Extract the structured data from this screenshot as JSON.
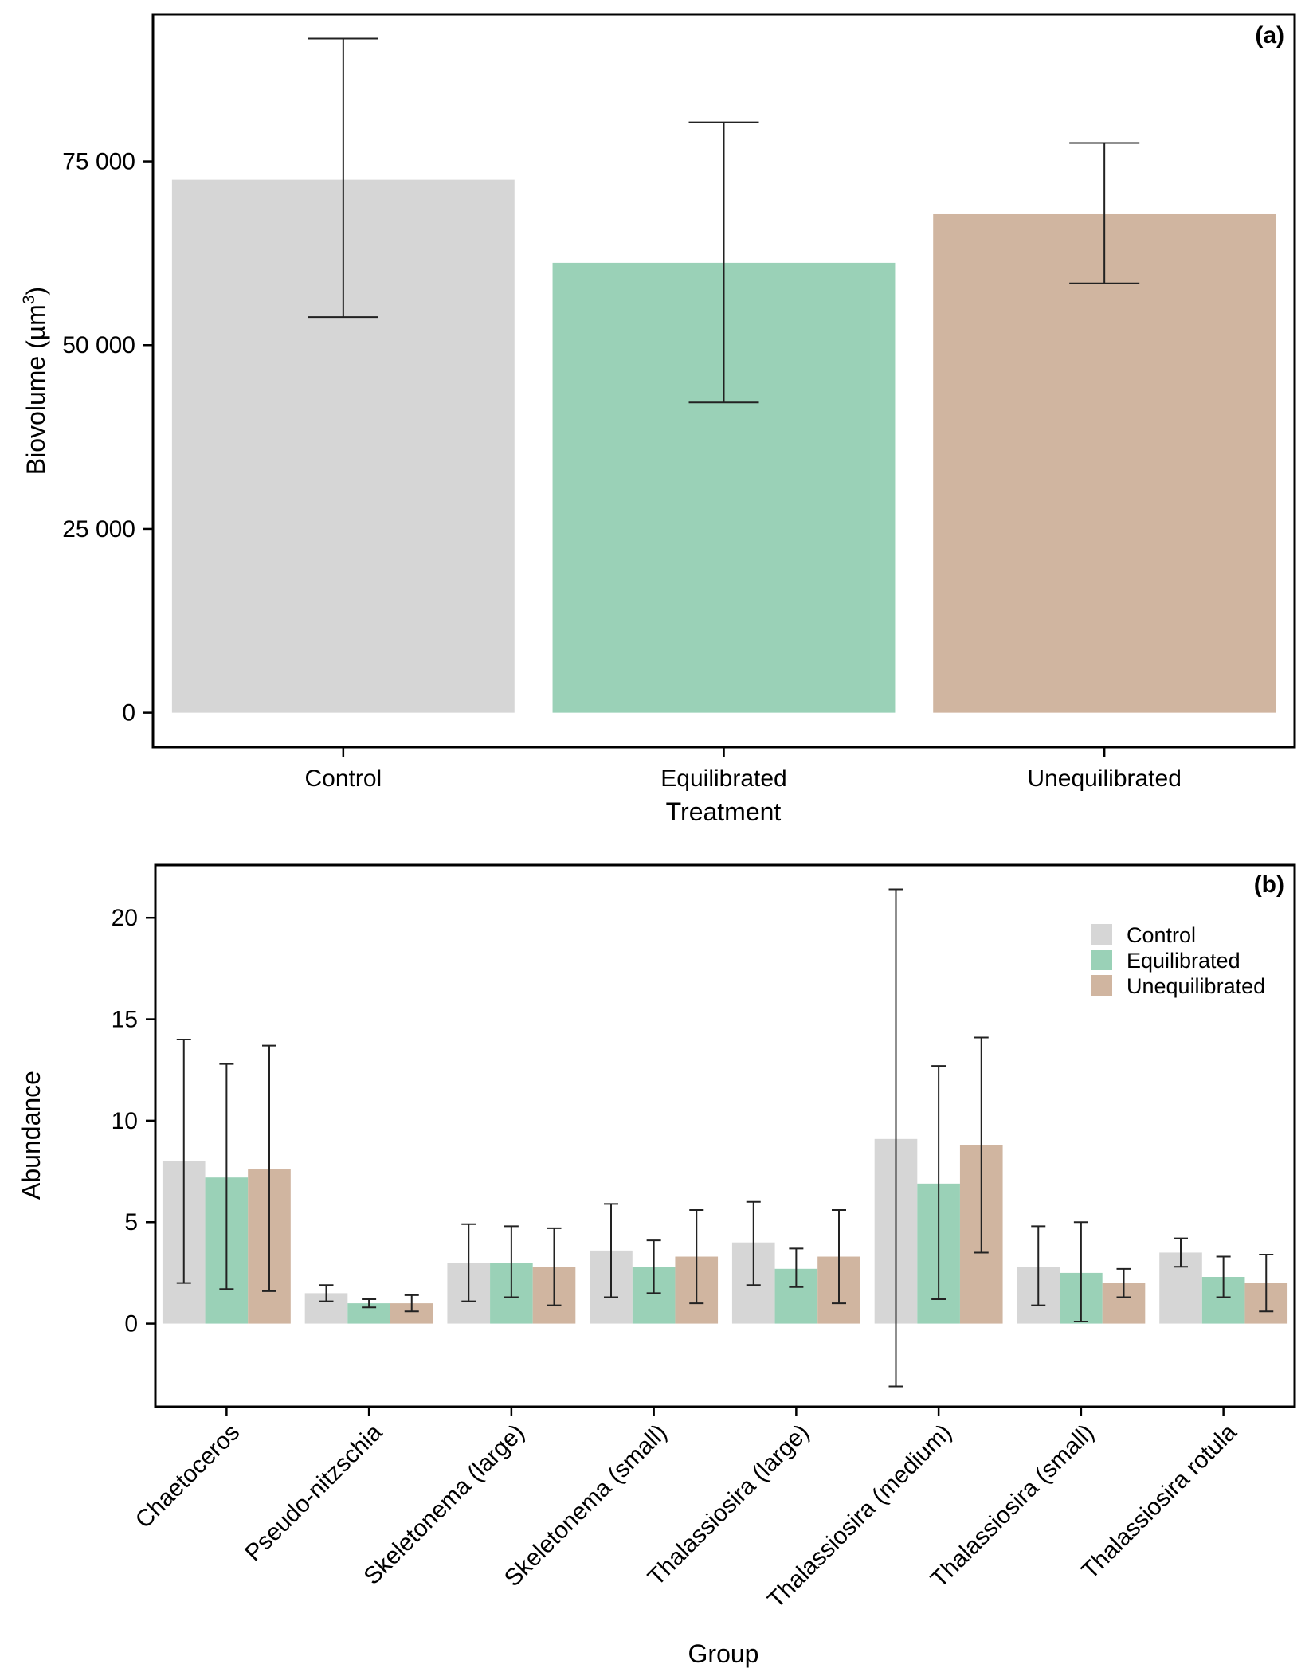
{
  "colors": {
    "control": "#d6d6d6",
    "equilibrated": "#9ad1b7",
    "unequilibrated": "#d0b5a0"
  },
  "chart_data": [
    {
      "type": "bar",
      "panel_label": "(a)",
      "xlabel": "Treatment",
      "ylabel": "Biovolume (µm³)",
      "ylabel_main": "Biovolume (",
      "ylabel_unit": "µm",
      "ylabel_exp": "3",
      "ylabel_close": ")",
      "ylim": [
        -4700,
        95000
      ],
      "yticks": [
        0,
        25000,
        50000,
        75000
      ],
      "ytick_labels": [
        "0",
        "25 000",
        "50 000",
        "75 000"
      ],
      "categories": [
        "Control",
        "Equilibrated",
        "Unequilibrated"
      ],
      "series": [
        {
          "name": "Biovolume",
          "values": [
            72500,
            61200,
            67800
          ],
          "error_low": [
            53800,
            42200,
            58400
          ],
          "error_high": [
            91700,
            80300,
            77500
          ]
        }
      ],
      "grid": false
    },
    {
      "type": "bar",
      "panel_label": "(b)",
      "xlabel": "Group",
      "ylabel": "Abundance",
      "ylim": [
        -4.1,
        22.6
      ],
      "yticks": [
        0,
        5,
        10,
        15,
        20
      ],
      "ytick_labels": [
        "0",
        "5",
        "10",
        "15",
        "20"
      ],
      "categories": [
        "Chaetoceros",
        "Pseudo-nitzschia",
        "Skeletonema (large)",
        "Skeletonema (small)",
        "Thalassiosira (large)",
        "Thalassiosira (medium)",
        "Thalassiosira (small)",
        "Thalassiosira rotula"
      ],
      "legend": [
        "Control",
        "Equilibrated",
        "Unequilibrated"
      ],
      "legend_position": "top-right",
      "series": [
        {
          "name": "Control",
          "values": [
            8.0,
            1.5,
            3.0,
            3.6,
            4.0,
            9.1,
            2.8,
            3.5
          ],
          "error_low": [
            2.0,
            1.1,
            1.1,
            1.3,
            1.9,
            -3.1,
            0.9,
            2.8
          ],
          "error_high": [
            14.0,
            1.9,
            4.9,
            5.9,
            6.0,
            21.4,
            4.8,
            4.2
          ]
        },
        {
          "name": "Equilibrated",
          "values": [
            7.2,
            1.0,
            3.0,
            2.8,
            2.7,
            6.9,
            2.5,
            2.3
          ],
          "error_low": [
            1.7,
            0.8,
            1.3,
            1.5,
            1.8,
            1.2,
            0.1,
            1.3
          ],
          "error_high": [
            12.8,
            1.2,
            4.8,
            4.1,
            3.7,
            12.7,
            5.0,
            3.3
          ]
        },
        {
          "name": "Unequilibrated",
          "values": [
            7.6,
            1.0,
            2.8,
            3.3,
            3.3,
            8.8,
            2.0,
            2.0
          ],
          "error_low": [
            1.6,
            0.6,
            0.9,
            1.0,
            1.0,
            3.5,
            1.3,
            0.6
          ],
          "error_high": [
            13.7,
            1.4,
            4.7,
            5.6,
            5.6,
            14.1,
            2.7,
            3.4
          ]
        }
      ],
      "grid": false
    }
  ]
}
